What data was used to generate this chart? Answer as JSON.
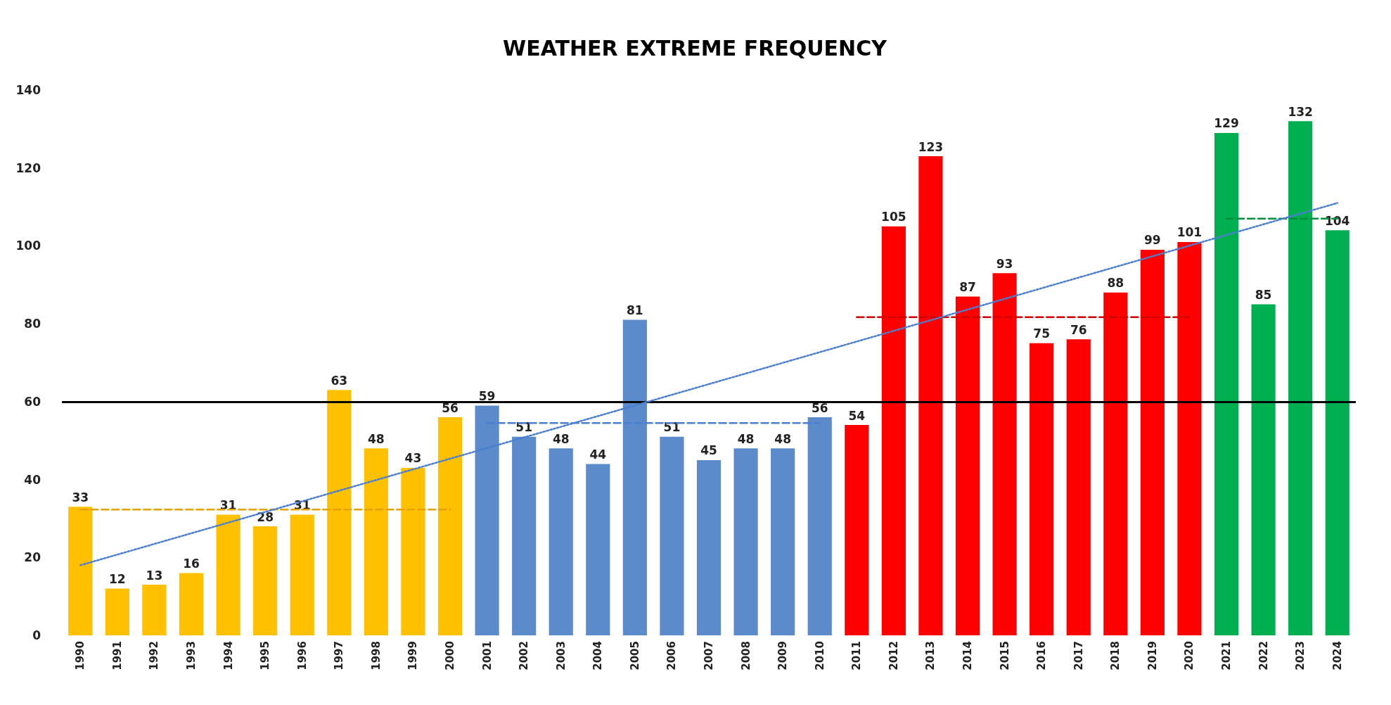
{
  "chart_data": {
    "type": "bar",
    "title": "WEATHER EXTREME FREQUENCY",
    "categories": [
      "1990",
      "1991",
      "1992",
      "1993",
      "1994",
      "1995",
      "1996",
      "1997",
      "1998",
      "1999",
      "2000",
      "2001",
      "2002",
      "2003",
      "2004",
      "2005",
      "2006",
      "2007",
      "2008",
      "2009",
      "2010",
      "2011",
      "2012",
      "2013",
      "2014",
      "2015",
      "2016",
      "2017",
      "2018",
      "2019",
      "2020",
      "2021",
      "2022",
      "2023",
      "2024"
    ],
    "series": [
      {
        "values": [
          33,
          12,
          13,
          16,
          31,
          28,
          31,
          63,
          48,
          43,
          56,
          59,
          51,
          48,
          44,
          81,
          51,
          45,
          48,
          48,
          56,
          54,
          105,
          123,
          87,
          93,
          75,
          76,
          88,
          99,
          101,
          129,
          85,
          132,
          104
        ],
        "value_labels": [
          "33",
          "12",
          "13",
          "16",
          "31",
          "28",
          "31",
          "63",
          "48",
          "43",
          "56",
          "59",
          "51",
          "48",
          "44",
          "81",
          "51",
          "45",
          "48",
          "48",
          "56",
          "54",
          "105",
          "123",
          "87",
          "93",
          "75",
          "76",
          "88",
          "99",
          "101",
          "129",
          "85",
          "132",
          "104"
        ],
        "colors": [
          "#ffc000",
          "#ffc000",
          "#ffc000",
          "#ffc000",
          "#ffc000",
          "#ffc000",
          "#ffc000",
          "#ffc000",
          "#ffc000",
          "#ffc000",
          "#ffc000",
          "#5b8bcb",
          "#5b8bcb",
          "#5b8bcb",
          "#5b8bcb",
          "#5b8bcb",
          "#5b8bcb",
          "#5b8bcb",
          "#5b8bcb",
          "#5b8bcb",
          "#5b8bcb",
          "#ff0000",
          "#ff0000",
          "#ff0000",
          "#ff0000",
          "#ff0000",
          "#ff0000",
          "#ff0000",
          "#ff0000",
          "#ff0000",
          "#ff0000",
          "#00b050",
          "#00b050",
          "#00b050",
          "#00b050"
        ]
      },
      {
        "type": "line",
        "values": [
          32.3,
          32.3,
          32.3,
          32.3,
          32.3,
          32.3,
          32.3,
          32.3,
          32.3,
          32.3,
          32.3,
          null,
          null,
          null,
          null,
          null,
          null,
          null,
          null,
          null,
          null,
          null,
          null,
          null,
          null,
          null,
          null,
          null,
          null,
          null,
          null,
          null,
          null,
          null,
          null
        ],
        "color": "#e8a200",
        "line_style": "dashed"
      },
      {
        "type": "line",
        "values": [
          null,
          null,
          null,
          null,
          null,
          null,
          null,
          null,
          null,
          null,
          null,
          54.5,
          54.5,
          54.5,
          54.5,
          54.5,
          54.5,
          54.5,
          54.5,
          54.5,
          54.5,
          null,
          null,
          null,
          null,
          null,
          null,
          null,
          null,
          null,
          null,
          null,
          null,
          null,
          null
        ],
        "color": "#4a7fd0",
        "line_style": "dashed"
      },
      {
        "type": "line",
        "values": [
          null,
          null,
          null,
          null,
          null,
          null,
          null,
          null,
          null,
          null,
          null,
          null,
          null,
          null,
          null,
          null,
          null,
          null,
          null,
          null,
          null,
          81.7,
          81.7,
          81.7,
          81.7,
          81.7,
          81.7,
          81.7,
          81.7,
          81.7,
          81.7,
          null,
          null,
          null,
          null
        ],
        "color": "#d40000",
        "line_style": "dashed"
      },
      {
        "type": "line",
        "values": [
          null,
          null,
          null,
          null,
          null,
          null,
          null,
          null,
          null,
          null,
          null,
          null,
          null,
          null,
          null,
          null,
          null,
          null,
          null,
          null,
          null,
          null,
          null,
          null,
          null,
          null,
          null,
          null,
          null,
          null,
          null,
          107,
          107,
          107,
          107
        ],
        "color": "#00903c",
        "line_style": "dashed"
      },
      {
        "type": "line",
        "values": [
          18,
          null,
          null,
          null,
          null,
          null,
          null,
          null,
          null,
          null,
          null,
          null,
          null,
          null,
          null,
          null,
          null,
          null,
          null,
          null,
          null,
          null,
          null,
          null,
          null,
          null,
          null,
          null,
          null,
          null,
          null,
          null,
          null,
          null,
          111
        ],
        "color": "#4a7fd0",
        "line_style": "dotted"
      }
    ],
    "ref_lines": [
      {
        "axis": "y",
        "value": 60,
        "color": "#000000",
        "line_style": "solid"
      }
    ],
    "ylim": [
      0,
      140
    ],
    "yticks": [
      0,
      20,
      40,
      60,
      80,
      100,
      120,
      140
    ],
    "grid": false,
    "marker": "none"
  }
}
